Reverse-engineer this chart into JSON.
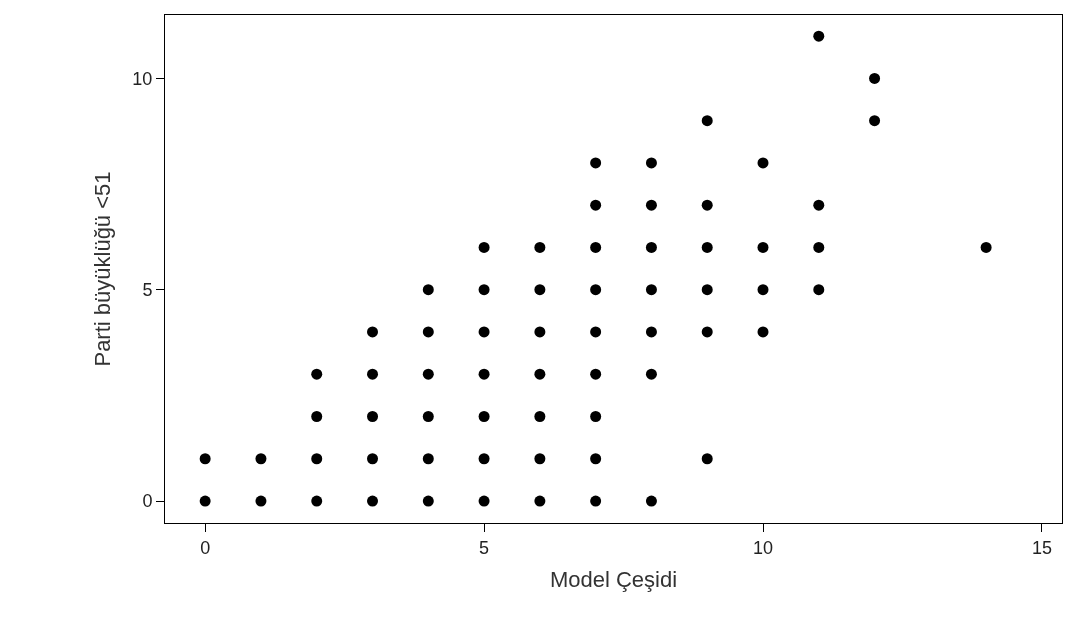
{
  "chart_data": {
    "type": "scatter",
    "xlabel": "Model Çeşidi",
    "ylabel": "Parti büyüklüğü <51",
    "x": [
      0,
      0,
      1,
      1,
      2,
      2,
      2,
      2,
      3,
      3,
      3,
      3,
      3,
      4,
      4,
      4,
      4,
      4,
      4,
      5,
      5,
      5,
      5,
      5,
      5,
      5,
      6,
      6,
      6,
      6,
      6,
      6,
      6,
      7,
      7,
      7,
      7,
      7,
      7,
      7,
      7,
      7,
      8,
      8,
      8,
      8,
      8,
      8,
      8,
      9,
      9,
      9,
      9,
      9,
      9,
      10,
      10,
      10,
      10,
      11,
      11,
      11,
      11,
      12,
      12,
      14
    ],
    "values": [
      0,
      1,
      0,
      1,
      0,
      1,
      2,
      3,
      0,
      1,
      2,
      3,
      4,
      0,
      1,
      2,
      3,
      4,
      5,
      0,
      1,
      2,
      3,
      4,
      5,
      6,
      0,
      1,
      2,
      3,
      4,
      5,
      6,
      0,
      1,
      2,
      3,
      4,
      5,
      6,
      7,
      8,
      0,
      3,
      4,
      5,
      6,
      7,
      8,
      1,
      4,
      5,
      6,
      7,
      9,
      4,
      5,
      6,
      8,
      5,
      6,
      7,
      11,
      9,
      10,
      6
    ],
    "color": "#000000",
    "marker": "circle",
    "xlim": [
      -0.72,
      15.36
    ],
    "ylim": [
      -0.52,
      11.5
    ],
    "xticks": [
      0,
      5,
      10,
      15
    ],
    "yticks": [
      0,
      5,
      10
    ]
  }
}
